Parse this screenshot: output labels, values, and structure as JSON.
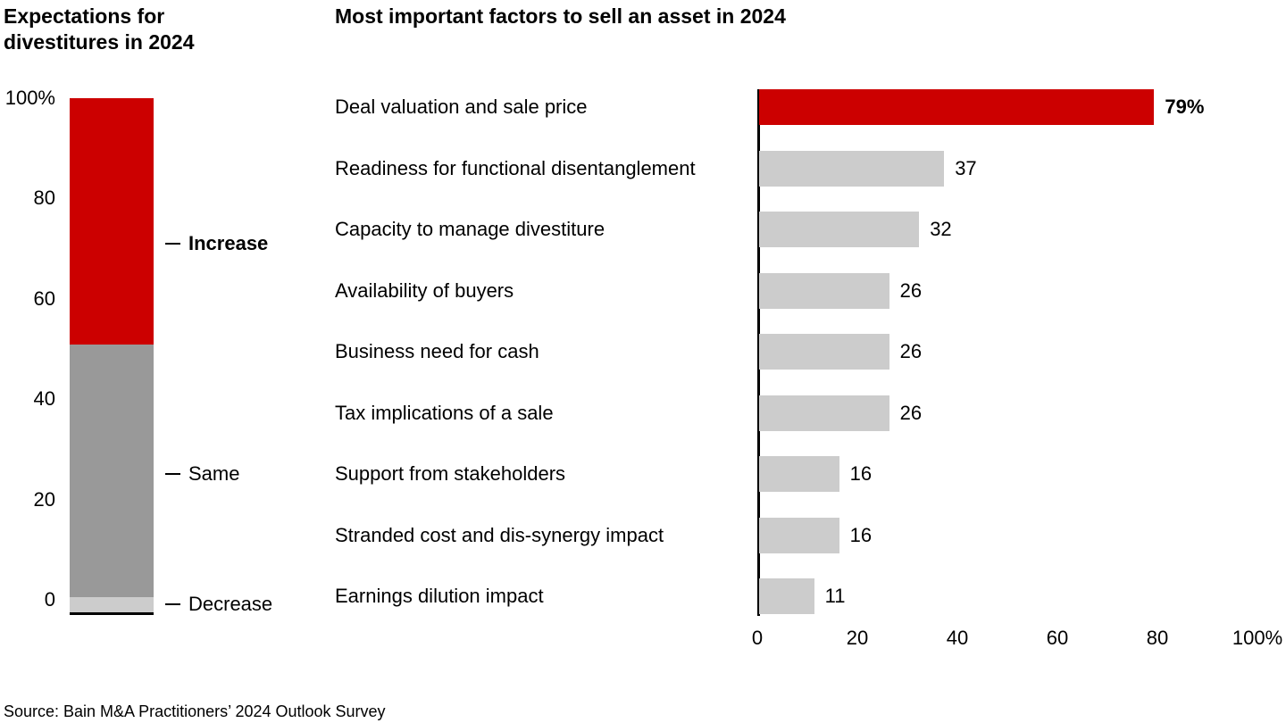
{
  "source": "Source: Bain M&A Practitioners’ 2024 Outlook Survey",
  "colors": {
    "red": "#CC0000",
    "gray_medium": "#999999",
    "gray_light": "#CCCCCC",
    "black": "#000000"
  },
  "chart_data": [
    {
      "type": "bar",
      "subtype": "stacked-vertical-100pct",
      "title": "Expectations for divestitures in 2024",
      "ylim": [
        0,
        100
      ],
      "y_ticks": [
        {
          "label": "100%",
          "value": 100
        },
        {
          "label": "80",
          "value": 80
        },
        {
          "label": "60",
          "value": 60
        },
        {
          "label": "40",
          "value": 40
        },
        {
          "label": "20",
          "value": 20
        },
        {
          "label": "0",
          "value": 0
        }
      ],
      "segments": [
        {
          "label": "Increase",
          "value": 48,
          "color": "#CC0000",
          "bold_label": true
        },
        {
          "label": "Same",
          "value": 49,
          "color": "#999999",
          "bold_label": false
        },
        {
          "label": "Decrease",
          "value": 3,
          "color": "#CCCCCC",
          "bold_label": false
        }
      ],
      "legend_position": "right-of-bar",
      "grid": false
    },
    {
      "type": "bar",
      "subtype": "horizontal",
      "title": "Most important factors to sell an asset in 2024",
      "xlim": [
        0,
        100
      ],
      "x_ticks": [
        {
          "label": "0",
          "value": 0
        },
        {
          "label": "20",
          "value": 20
        },
        {
          "label": "40",
          "value": 40
        },
        {
          "label": "60",
          "value": 60
        },
        {
          "label": "80",
          "value": 80
        },
        {
          "label": "100%",
          "value": 100
        }
      ],
      "bars": [
        {
          "label": "Deal valuation and sale price",
          "value": 79,
          "value_label": "79%",
          "color": "#CC0000",
          "bold_value": true
        },
        {
          "label": "Readiness for functional disentanglement",
          "value": 37,
          "value_label": "37",
          "color": "#CCCCCC",
          "bold_value": false
        },
        {
          "label": "Capacity to manage divestiture",
          "value": 32,
          "value_label": "32",
          "color": "#CCCCCC",
          "bold_value": false
        },
        {
          "label": "Availability of buyers",
          "value": 26,
          "value_label": "26",
          "color": "#CCCCCC",
          "bold_value": false
        },
        {
          "label": "Business need for cash",
          "value": 26,
          "value_label": "26",
          "color": "#CCCCCC",
          "bold_value": false
        },
        {
          "label": "Tax implications of a sale",
          "value": 26,
          "value_label": "26",
          "color": "#CCCCCC",
          "bold_value": false
        },
        {
          "label": "Support from stakeholders",
          "value": 16,
          "value_label": "16",
          "color": "#CCCCCC",
          "bold_value": false
        },
        {
          "label": "Stranded cost and dis-synergy impact",
          "value": 16,
          "value_label": "16",
          "color": "#CCCCCC",
          "bold_value": false
        },
        {
          "label": "Earnings dilution impact",
          "value": 11,
          "value_label": "11",
          "color": "#CCCCCC",
          "bold_value": false
        }
      ],
      "grid": false
    }
  ]
}
